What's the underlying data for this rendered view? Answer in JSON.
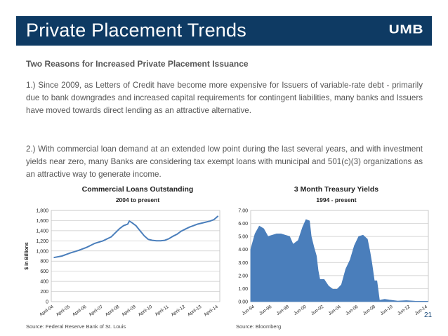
{
  "header": {
    "title": "Private Placement Trends",
    "logo": "UMB"
  },
  "subtitle": "Two Reasons for Increased Private Placement Issuance",
  "paragraphs": [
    "1.)  Since 2009, as Letters of Credit have become more expensive for Issuers of variable-rate debt - primarily due to bank downgrades and increased capital requirements for contingent liabilities, many banks and Issuers have moved towards direct lending as an attractive alternative.",
    "2.)  With commercial loan demand at an extended low point during the last several years, and with investment yields near zero, many Banks are considering tax exempt loans with municipal and 501(c)(3) organizations as an attractive way to generate income."
  ],
  "page_number": "21",
  "colors": {
    "header_bg": "#0e3a63",
    "series": "#4a7ebb"
  },
  "chart_data": [
    {
      "type": "line",
      "title": "Commercial  Loans Outstanding",
      "subtitle": "2004 to present",
      "ylabel": "$ in Billions",
      "xlabel": "",
      "ylim": [
        0,
        1800
      ],
      "yticks": [
        "0",
        "200",
        "400",
        "600",
        "800",
        "1,000",
        "1,200",
        "1,400",
        "1,600",
        "1,800"
      ],
      "xticks": [
        "April-04",
        "April-05",
        "April-06",
        "April-07",
        "April-08",
        "April-09",
        "April-10",
        "April-11",
        "April-12",
        "April-13",
        "April-14"
      ],
      "grid": true,
      "source": "Source:  Federal Reserve Bank of St. Louis",
      "series": [
        {
          "x": [
            2004.25,
            2004.75,
            2005.25,
            2005.75,
            2006.25,
            2006.75,
            2007.25,
            2007.75,
            2008.0,
            2008.25,
            2008.5,
            2008.75,
            2008.85,
            2009.0,
            2009.25,
            2009.5,
            2009.75,
            2010.0,
            2010.25,
            2010.5,
            2010.75,
            2011.0,
            2011.25,
            2011.5,
            2011.75,
            2012.0,
            2012.25,
            2012.5,
            2012.75,
            2013.0,
            2013.25,
            2013.5,
            2013.75,
            2014.0,
            2014.25
          ],
          "values": [
            870,
            900,
            960,
            1010,
            1070,
            1150,
            1200,
            1280,
            1360,
            1440,
            1500,
            1530,
            1590,
            1560,
            1500,
            1400,
            1300,
            1230,
            1210,
            1200,
            1200,
            1210,
            1240,
            1290,
            1330,
            1390,
            1430,
            1470,
            1500,
            1530,
            1550,
            1570,
            1590,
            1620,
            1690
          ]
        }
      ]
    },
    {
      "type": "area",
      "title": "3 Month Treasury Yields",
      "subtitle": "1994 - present",
      "xlabel": "",
      "ylabel": "",
      "ylim": [
        0,
        7
      ],
      "yticks": [
        "0.00",
        "1.00",
        "2.00",
        "3.00",
        "4.00",
        "5.00",
        "6.00",
        "7.00"
      ],
      "xticks": [
        "Jun-94",
        "Jun-96",
        "Jun-98",
        "Jun-00",
        "Jun-02",
        "Jun-04",
        "Jun-06",
        "Jun-08",
        "Jun-10",
        "Jun-12",
        "Jun-14"
      ],
      "grid": true,
      "source": "Source:  Bloomberg",
      "series": [
        {
          "x": [
            1994.0,
            1994.5,
            1995.0,
            1995.5,
            1996.0,
            1996.5,
            1997.0,
            1997.5,
            1998.0,
            1998.5,
            1998.9,
            1999.5,
            2000.0,
            2000.4,
            2000.8,
            2001.0,
            2001.3,
            2001.6,
            2001.8,
            2002.0,
            2002.5,
            2003.0,
            2003.5,
            2004.0,
            2004.5,
            2005.0,
            2005.5,
            2006.0,
            2006.5,
            2007.0,
            2007.5,
            2007.8,
            2008.0,
            2008.3,
            2008.6,
            2008.9,
            2009.5,
            2010.0,
            2011.0,
            2012.0,
            2013.0,
            2014.0,
            2014.5
          ],
          "values": [
            4.0,
            5.2,
            5.8,
            5.6,
            5.0,
            5.1,
            5.2,
            5.2,
            5.1,
            5.0,
            4.4,
            4.7,
            5.7,
            6.3,
            6.2,
            5.0,
            4.2,
            3.5,
            2.4,
            1.7,
            1.7,
            1.2,
            0.95,
            0.95,
            1.3,
            2.5,
            3.2,
            4.3,
            5.0,
            5.1,
            4.8,
            3.8,
            3.0,
            1.6,
            1.6,
            0.1,
            0.18,
            0.13,
            0.05,
            0.08,
            0.04,
            0.03,
            0.03
          ]
        }
      ]
    }
  ]
}
